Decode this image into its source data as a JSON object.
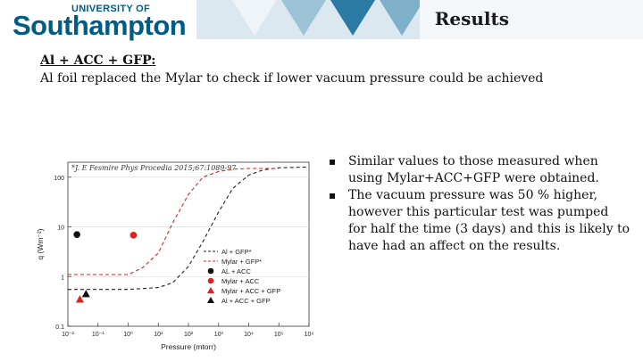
{
  "header": {
    "logo": {
      "line1": "UNIVERSITY OF",
      "line2": "Southampton"
    },
    "title": "Results",
    "colors": {
      "brand": "#005c84",
      "band_light": "#dce8ef",
      "band_mid": "#7fb0c9",
      "band_dark": "#2a7aa3"
    }
  },
  "content": {
    "subtitle": "Al + ACC + GFP:",
    "description": "Al foil replaced the Mylar to check if lower vacuum pressure could be achieved",
    "bullet_icon": "square-bullet-icon",
    "bullets": [
      "Similar values to those measured when using Mylar+ACC+GFP were obtained.",
      "The vacuum pressure was 50 % higher, however this particular test was pumped for half the time (3 days) and this is likely to have had an affect on the results."
    ]
  },
  "chart_data": {
    "type": "scatter",
    "annotation": "*J. E Fesmire Phys Procedia 2015;67:1089-97",
    "xlabel": "Pressure (mtorr)",
    "ylabel": "q (Wm⁻²)",
    "xscale": "log",
    "yscale": "log",
    "xlim": [
      0.01,
      1000000
    ],
    "ylim": [
      0.1,
      200
    ],
    "x_ticks": [
      "10⁻²",
      "10⁻¹",
      "10⁰",
      "10¹",
      "10²",
      "10³",
      "10⁴",
      "10⁵",
      "10⁶"
    ],
    "y_ticks": [
      "0.1",
      "1",
      "10",
      "100"
    ],
    "legend_position": "bottom-right",
    "series": [
      {
        "name": "Al + GFP*",
        "kind": "dashed-line",
        "color": "#222222",
        "x": [
          0.01,
          1,
          10,
          30,
          100,
          300,
          1000,
          3000,
          10000,
          30000,
          100000,
          1000000
        ],
        "y": [
          0.55,
          0.55,
          0.6,
          0.75,
          1.6,
          5,
          20,
          60,
          110,
          140,
          155,
          160
        ]
      },
      {
        "name": "Mylar + GFP*",
        "kind": "dashed-line",
        "color": "#dd2222",
        "x": [
          0.01,
          1,
          3,
          10,
          30,
          100,
          300,
          1000,
          3000,
          10000,
          100000
        ],
        "y": [
          1.1,
          1.1,
          1.5,
          3,
          12,
          45,
          100,
          130,
          145,
          150,
          150
        ]
      },
      {
        "name": "AL + ACC",
        "marker": "circle",
        "color": "#111111",
        "x": [
          0.02
        ],
        "y": [
          7
        ]
      },
      {
        "name": "Mylar + ACC",
        "marker": "circle",
        "color": "#dd2222",
        "x": [
          1.5
        ],
        "y": [
          6.8
        ]
      },
      {
        "name": "Mylar + ACC + GFP",
        "marker": "triangle",
        "color": "#dd2222",
        "x": [
          0.025
        ],
        "y": [
          0.35
        ]
      },
      {
        "name": "Al + ACC + GFP",
        "marker": "triangle",
        "color": "#111111",
        "x": [
          0.04
        ],
        "y": [
          0.45
        ]
      }
    ]
  }
}
